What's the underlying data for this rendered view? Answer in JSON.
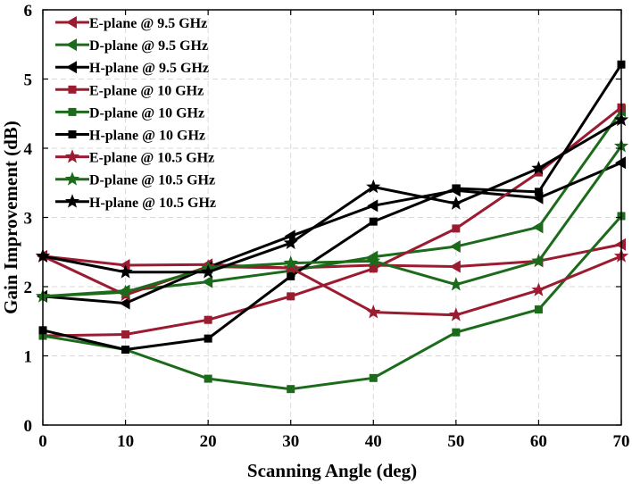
{
  "chart_data": {
    "type": "line",
    "xlabel": "Scanning Angle (deg)",
    "ylabel": "Gain Improvement (dB)",
    "xlim": [
      0,
      70
    ],
    "ylim": [
      0,
      6
    ],
    "xticks": [
      0,
      10,
      20,
      30,
      40,
      50,
      60,
      70
    ],
    "yticks": [
      0,
      1,
      2,
      3,
      4,
      5,
      6
    ],
    "grid": true,
    "legend_position": "top-left",
    "x": [
      0,
      10,
      20,
      30,
      40,
      50,
      60,
      70
    ],
    "series": [
      {
        "name": "E-plane @ 9.5 GHz",
        "color": "#9b1b30",
        "marker": "triangle-left",
        "values": [
          2.44,
          2.31,
          2.32,
          2.27,
          2.31,
          2.29,
          2.37,
          2.61
        ]
      },
      {
        "name": "D-plane @ 9.5 GHz",
        "color": "#1b6b1b",
        "marker": "triangle-left",
        "values": [
          1.86,
          1.94,
          2.07,
          2.23,
          2.43,
          2.58,
          2.86,
          4.54
        ]
      },
      {
        "name": "H-plane @ 9.5 GHz",
        "color": "#000000",
        "marker": "triangle-left",
        "values": [
          1.86,
          1.76,
          2.28,
          2.73,
          3.17,
          3.39,
          3.28,
          3.79
        ]
      },
      {
        "name": "E-plane @ 10 GHz",
        "color": "#9b1b30",
        "marker": "square",
        "values": [
          1.29,
          1.31,
          1.52,
          1.86,
          2.26,
          2.84,
          3.65,
          4.59
        ]
      },
      {
        "name": "D-plane @ 10 GHz",
        "color": "#1b6b1b",
        "marker": "square",
        "values": [
          1.29,
          1.09,
          0.67,
          0.52,
          0.68,
          1.34,
          1.67,
          3.02
        ]
      },
      {
        "name": "H-plane @ 10 GHz",
        "color": "#000000",
        "marker": "square",
        "values": [
          1.37,
          1.09,
          1.25,
          2.15,
          2.94,
          3.42,
          3.37,
          5.21
        ]
      },
      {
        "name": "E-plane @ 10.5 GHz",
        "color": "#9b1b30",
        "marker": "star",
        "values": [
          2.44,
          1.88,
          2.29,
          2.27,
          1.63,
          1.59,
          1.95,
          2.44
        ]
      },
      {
        "name": "D-plane @ 10.5 GHz",
        "color": "#1b6b1b",
        "marker": "star",
        "values": [
          1.86,
          1.92,
          2.27,
          2.34,
          2.37,
          2.03,
          2.37,
          4.03
        ]
      },
      {
        "name": "H-plane @ 10.5 GHz",
        "color": "#000000",
        "marker": "star",
        "values": [
          2.44,
          2.21,
          2.21,
          2.63,
          3.44,
          3.2,
          3.71,
          4.41
        ]
      }
    ]
  }
}
